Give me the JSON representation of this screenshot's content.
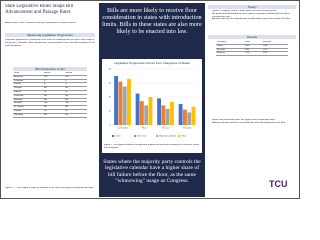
{
  "header": {
    "title": "State Legislative Rules Shape Bill Advancement and Passage Rates",
    "authors": "Adam Zelizer, Texas Christian University; Department of Political Science"
  },
  "left": {
    "section_title": "Measuring Legislative Progression",
    "body": "Legislative progression is measured as the share of introduced bills that reach each stage of the process: committee, floor consideration, and enactment. Data cover bills introduced in all state legislatures.",
    "table_title": "Bill Introduction Limits",
    "table": {
      "headers": [
        "State",
        "House",
        "Senate"
      ],
      "rows": [
        [
          "Arkansas",
          "Yes",
          "Yes"
        ],
        [
          "Colorado",
          "5",
          "5"
        ],
        [
          "Florida",
          "6",
          "6"
        ],
        [
          "Georgia",
          "No",
          "No"
        ],
        [
          "Indiana",
          "10",
          "10"
        ],
        [
          "Louisiana",
          "No",
          "No"
        ],
        [
          "Montana",
          "No",
          "No"
        ],
        [
          "Nevada",
          "Yes",
          "Yes"
        ],
        [
          "N. Dakota",
          "No",
          "No"
        ],
        [
          "Virginia",
          "15",
          "15"
        ],
        [
          "Wyoming",
          "No",
          "No"
        ]
      ]
    },
    "caption": "Figure 2 — The number of limits by chamber in the states that impose bill introduction limits"
  },
  "banner_top": "Bills are more likely to receive floor consideration in states with introduction limits. Bills in these states are also more likely to be enacted into law.",
  "figure": {
    "title": "Legislative Progression Across Four Categories of States",
    "categories": [
      "Committee",
      "Floor",
      "Passed",
      "Enacted"
    ],
    "series": [
      {
        "name": "Limits",
        "color": "#4472c4",
        "values": [
          70,
          45,
          38,
          30
        ]
      },
      {
        "name": "No Limits",
        "color": "#ed7d31",
        "values": [
          62,
          34,
          28,
          22
        ]
      },
      {
        "name": "Majority Calendar",
        "color": "#a5a5a5",
        "values": [
          55,
          28,
          23,
          18
        ]
      },
      {
        "name": "Other",
        "color": "#ffc000",
        "values": [
          66,
          40,
          33,
          26
        ]
      }
    ],
    "ylim": [
      0,
      80
    ],
    "yticks": [
      0,
      20,
      40,
      60,
      80
    ],
    "caption": "Figure 1. This graph illustrates the legislative progression of all bills introduced in the states across four categories."
  },
  "banner_bottom": "States where the majority party controls the legislative calendar have a higher share of bill failure before the floor, as the same \"winnowing\" usage as Congress.",
  "right": {
    "theory_title": "Theory",
    "theory_bullets": [
      "Unlike in Congress, floors in many states see most introduced bills.",
      "We predict that bill introduction limits reduce committee workload and raise floor consideration rates.",
      "Agenda control by the majority party should produce more failure before the floor."
    ],
    "results_title": "Results",
    "results_table": {
      "headers": [
        "Category",
        "Floor",
        "Enacted"
      ],
      "rows": [
        [
          "Limits",
          "0.45",
          "0.30"
        ],
        [
          "No limits",
          "0.34",
          "0.22"
        ],
        [
          "Majority",
          "0.28",
          "0.18"
        ]
      ]
    },
    "results_bullets": [
      "States with introduction limits see higher floor consideration rates.",
      "Majority calendar control is associated with more bills failing before the floor."
    ],
    "logo": "TCU"
  }
}
